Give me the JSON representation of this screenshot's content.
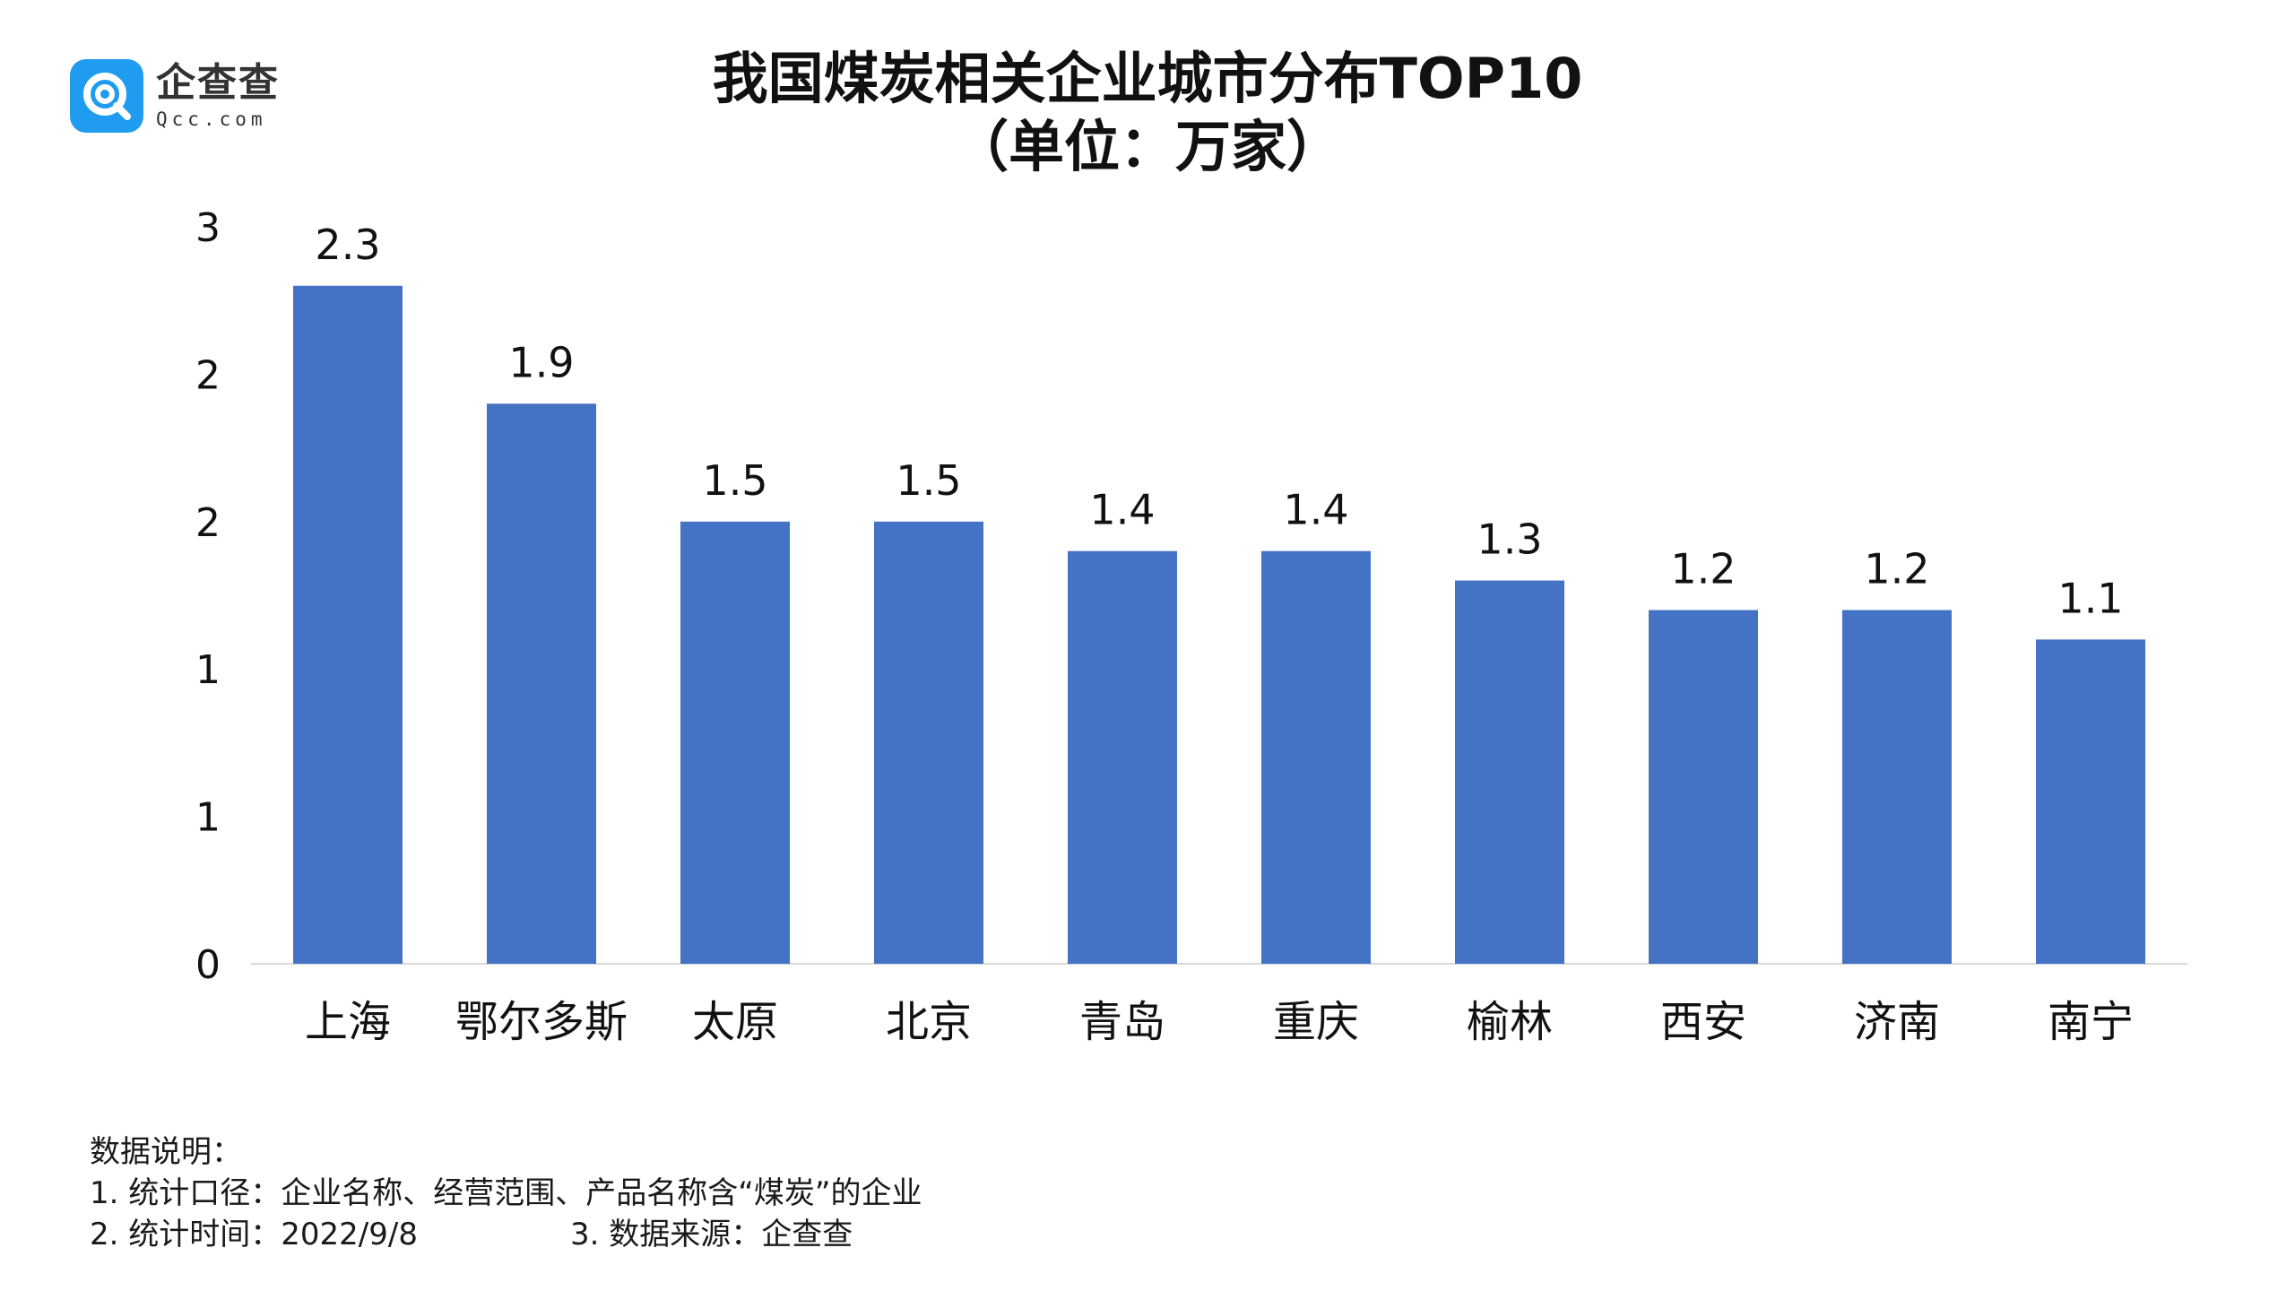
{
  "brand": {
    "name": "企查查",
    "domain": "Qcc.com",
    "color": "#1f9cf0"
  },
  "chart_data": {
    "type": "bar",
    "title": "我国煤炭相关企业城市分布TOP10",
    "subtitle": "（单位：万家）",
    "categories": [
      "上海",
      "鄂尔多斯",
      "太原",
      "北京",
      "青岛",
      "重庆",
      "榆林",
      "西安",
      "济南",
      "南宁"
    ],
    "values": [
      2.3,
      1.9,
      1.5,
      1.5,
      1.4,
      1.4,
      1.3,
      1.2,
      1.2,
      1.1
    ],
    "value_labels": [
      "2.3",
      "1.9",
      "1.5",
      "1.5",
      "1.4",
      "1.4",
      "1.3",
      "1.2",
      "1.2",
      "1.1"
    ],
    "y_tick_values": [
      0,
      0.5,
      1,
      1.5,
      2,
      2.5
    ],
    "y_tick_labels": [
      "0",
      "1",
      "1",
      "2",
      "2",
      "3"
    ],
    "ylim": [
      0,
      2.5
    ],
    "bar_color": "#4472c4",
    "axis_color": "#d9d9d9",
    "grid": false,
    "legend": "none"
  },
  "notes": {
    "heading": "数据说明：",
    "line1": "1. 统计口径：企业名称、经营范围、产品名称含“煤炭”的企业",
    "line2a": "2. 统计时间：2022/9/8",
    "line2b": "3. 数据来源：企查查"
  }
}
